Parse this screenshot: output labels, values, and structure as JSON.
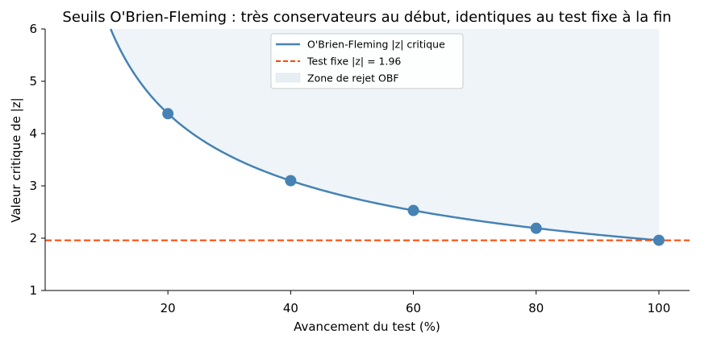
{
  "chart_data": {
    "type": "line",
    "title": "Seuils O'Brien-Fleming : très conservateurs au début, identiques au test fixe à la fin",
    "xlabel": "Avancement du test (%)",
    "ylabel": "Valeur critique de |z|",
    "xlim": [
      0,
      105
    ],
    "ylim": [
      1,
      6
    ],
    "xticks": [
      20,
      40,
      60,
      80,
      100
    ],
    "yticks": [
      1,
      2,
      3,
      4,
      5,
      6
    ],
    "grid": false,
    "legend_position": "top-center",
    "series": [
      {
        "name": "O'Brien-Fleming |z| critique",
        "style": "solid",
        "color": "#4682b4",
        "formula_note": "z = 1.96 / sqrt(t/100)",
        "fixed_z": 1.96
      },
      {
        "name": "Test fixe |z| = 1.96",
        "style": "dashed",
        "color": "#ff4500",
        "value": 1.96
      },
      {
        "name": "Zone de rejet OBF",
        "style": "fill",
        "color": "#4682b4"
      }
    ],
    "points": {
      "x": [
        20,
        40,
        60,
        80,
        100
      ],
      "y": [
        4.38,
        3.1,
        2.53,
        2.19,
        1.96
      ]
    }
  }
}
